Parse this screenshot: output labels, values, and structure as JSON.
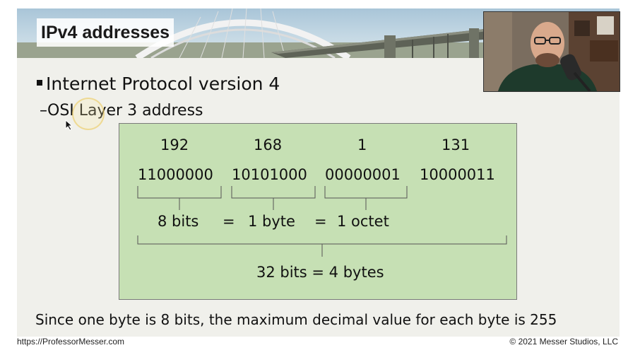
{
  "slide": {
    "title": "IPv4 addresses",
    "bullet_1": "Internet Protocol version 4",
    "bullet_2": "–OSI Layer 3 address",
    "footer_note": "Since one byte is 8 bits, the maximum decimal value  for each byte is 255"
  },
  "diagram": {
    "decimal": [
      "192",
      "168",
      "1",
      "131"
    ],
    "binary": [
      "11000000",
      "10101000",
      "00000001",
      "10000011"
    ],
    "eq_parts": [
      "8 bits",
      "=",
      "1 byte",
      "=",
      "1 octet"
    ],
    "total": "32 bits = 4 bytes"
  },
  "footer": {
    "url": "https://ProfessorMesser.com",
    "copyright": "© 2021 Messer Studios, LLC"
  },
  "colors": {
    "box_fill": "#c6e0b4",
    "slide_bg": "#f0f0eb"
  },
  "icons": {
    "cursor": "mouse-pointer-icon"
  }
}
